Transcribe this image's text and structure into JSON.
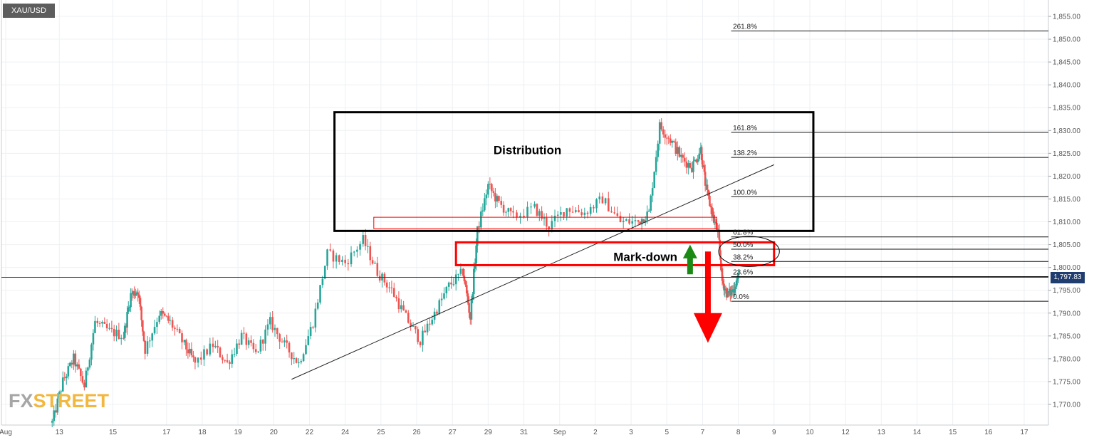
{
  "symbol": "XAU/USD",
  "watermark": {
    "part1": "FX",
    "part2": "STREET"
  },
  "current_price": "1,797.83",
  "colors": {
    "bull": "#26a69a",
    "bear": "#ef5350",
    "grid": "#eef0f3",
    "annotation_red": "#ff0000",
    "arrow_green": "#1b8a14",
    "price_line": "#1f3d6e"
  },
  "chart_data": {
    "type": "candlestick",
    "title": "",
    "xlabel": "",
    "ylabel": "",
    "ylim": [
      1766,
      1858
    ],
    "y_ticks": [
      {
        "value": 1770,
        "label": "1,770.00"
      },
      {
        "value": 1775,
        "label": "1,775.00"
      },
      {
        "value": 1780,
        "label": "1,780.00"
      },
      {
        "value": 1785,
        "label": "1,785.00"
      },
      {
        "value": 1790,
        "label": "1,790.00"
      },
      {
        "value": 1795,
        "label": "1,795.00"
      },
      {
        "value": 1800,
        "label": "1,800.00"
      },
      {
        "value": 1805,
        "label": "1,805.00"
      },
      {
        "value": 1810,
        "label": "1,810.00"
      },
      {
        "value": 1815,
        "label": "1,815.00"
      },
      {
        "value": 1820,
        "label": "1,820.00"
      },
      {
        "value": 1825,
        "label": "1,825.00"
      },
      {
        "value": 1830,
        "label": "1,830.00"
      },
      {
        "value": 1835,
        "label": "1,835.00"
      },
      {
        "value": 1840,
        "label": "1,840.00"
      },
      {
        "value": 1845,
        "label": "1,845.00"
      },
      {
        "value": 1850,
        "label": "1,850.00"
      },
      {
        "value": 1855,
        "label": "1,855.00"
      }
    ],
    "x_ticks": [
      "Aug",
      "13",
      "15",
      "17",
      "18",
      "19",
      "20",
      "22",
      "24",
      "25",
      "26",
      "27",
      "29",
      "31",
      "Sep",
      "2",
      "3",
      "5",
      "7",
      "8",
      "9",
      "10",
      "12",
      "13",
      "14",
      "15",
      "16",
      "17"
    ],
    "x_index": [
      0,
      1.5,
      3,
      4.5,
      5.5,
      6.5,
      7.5,
      8.5,
      9.5,
      10.5,
      11.5,
      12.5,
      13.5,
      14.5,
      15.5,
      16.5,
      17.5,
      18.5,
      19.5,
      20.5,
      21.5,
      22.5,
      23.5,
      24.5,
      25.5,
      26.5,
      27.5,
      28.5
    ],
    "price_path": [
      [
        1.3,
        1766
      ],
      [
        1.6,
        1775
      ],
      [
        1.9,
        1780
      ],
      [
        2.2,
        1774
      ],
      [
        2.5,
        1788
      ],
      [
        2.9,
        1786
      ],
      [
        3.3,
        1785
      ],
      [
        3.5,
        1794
      ],
      [
        3.7,
        1795
      ],
      [
        3.9,
        1782
      ],
      [
        4.3,
        1790
      ],
      [
        4.6,
        1788
      ],
      [
        5.0,
        1783
      ],
      [
        5.3,
        1779
      ],
      [
        5.8,
        1783
      ],
      [
        6.2,
        1779
      ],
      [
        6.6,
        1785
      ],
      [
        7.0,
        1781
      ],
      [
        7.4,
        1788
      ],
      [
        7.8,
        1783
      ],
      [
        8.2,
        1779
      ],
      [
        8.6,
        1788
      ],
      [
        9.0,
        1803
      ],
      [
        9.5,
        1801
      ],
      [
        10.0,
        1806
      ],
      [
        10.4,
        1799
      ],
      [
        10.8,
        1795
      ],
      [
        11.2,
        1789
      ],
      [
        11.6,
        1784
      ],
      [
        12.0,
        1790
      ],
      [
        12.4,
        1796
      ],
      [
        12.8,
        1799
      ],
      [
        13.0,
        1789
      ],
      [
        13.2,
        1808
      ],
      [
        13.5,
        1818
      ],
      [
        13.8,
        1814
      ],
      [
        14.2,
        1811
      ],
      [
        14.8,
        1813
      ],
      [
        15.2,
        1809
      ],
      [
        15.7,
        1813
      ],
      [
        16.2,
        1812
      ],
      [
        16.7,
        1815
      ],
      [
        17.2,
        1810
      ],
      [
        17.7,
        1810
      ],
      [
        18.0,
        1812
      ],
      [
        18.3,
        1831
      ],
      [
        18.6,
        1828
      ],
      [
        18.9,
        1824
      ],
      [
        19.2,
        1822
      ],
      [
        19.45,
        1826
      ],
      [
        19.6,
        1817
      ],
      [
        19.8,
        1811
      ],
      [
        19.95,
        1807
      ],
      [
        20.05,
        1797
      ],
      [
        20.2,
        1794
      ],
      [
        20.35,
        1795
      ],
      [
        20.5,
        1798
      ]
    ],
    "fibonacci": [
      {
        "label": "261.8%",
        "value": 1851.8
      },
      {
        "label": "161.8%",
        "value": 1829.6
      },
      {
        "label": "138.2%",
        "value": 1824.1
      },
      {
        "label": "100.0%",
        "value": 1815.5
      },
      {
        "label": "61.8%",
        "value": 1806.7
      },
      {
        "label": "50.0%",
        "value": 1804.0
      },
      {
        "label": "38.2%",
        "value": 1801.3
      },
      {
        "label": "23.6%",
        "value": 1798.0
      },
      {
        "label": "0.0%",
        "value": 1792.6
      }
    ],
    "annotations": {
      "distribution_label": "Distribution",
      "markdown_label": "Mark-down"
    }
  }
}
